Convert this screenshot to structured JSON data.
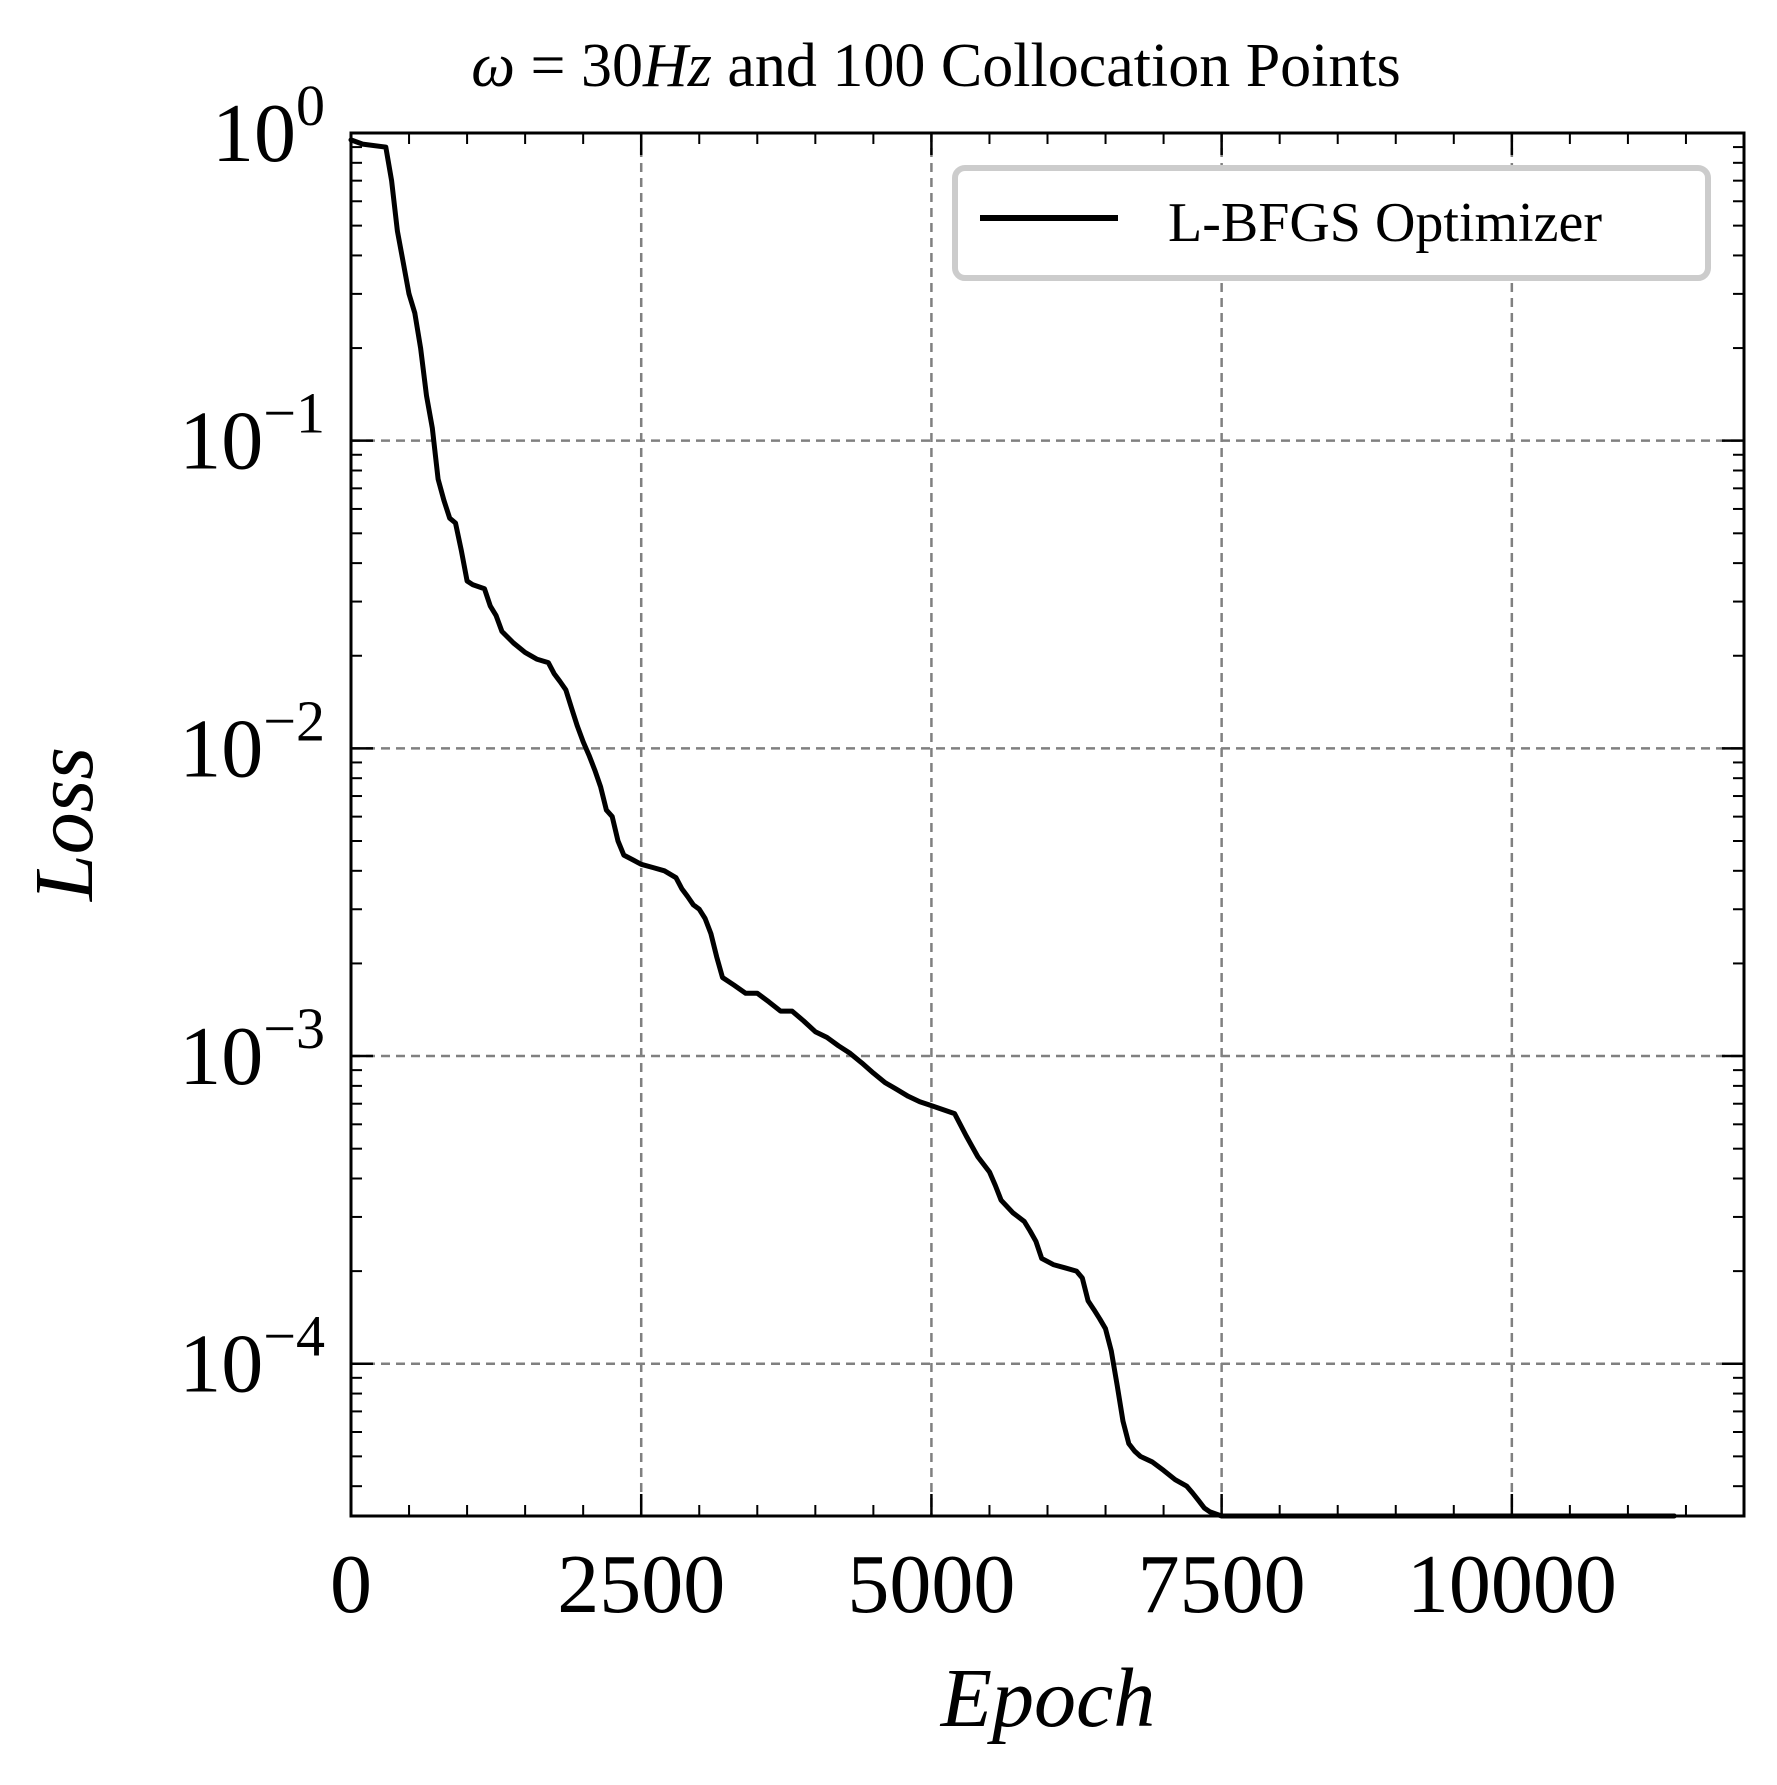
{
  "chart_data": {
    "type": "line",
    "title_prefix": "ω",
    "title_mid": " = 30",
    "title_unit": "Hz",
    "title_rest": " and 100 Collocation Points",
    "xlabel": "Epoch",
    "ylabel": "Loss",
    "xlim": [
      0,
      12000
    ],
    "ylim": [
      3.2e-05,
      1
    ],
    "yscale": "log",
    "xticks": [
      0,
      2500,
      5000,
      7500,
      10000
    ],
    "xtick_labels": [
      "0",
      "2500",
      "5000",
      "7500",
      "10000"
    ],
    "yticks": [
      1,
      0.1,
      0.01,
      0.001,
      0.0001
    ],
    "ytick_labels": [
      {
        "base": "10",
        "exp": "0"
      },
      {
        "base": "10",
        "exp": "−1"
      },
      {
        "base": "10",
        "exp": "−2"
      },
      {
        "base": "10",
        "exp": "−3"
      },
      {
        "base": "10",
        "exp": "−4"
      }
    ],
    "grid": true,
    "legend_position": "top-right",
    "series": [
      {
        "name": "L-BFGS Optimizer",
        "color": "#000000",
        "x": [
          0,
          100,
          300,
          350,
          400,
          450,
          500,
          550,
          600,
          650,
          700,
          750,
          800,
          850,
          900,
          950,
          1000,
          1050,
          1150,
          1200,
          1250,
          1300,
          1400,
          1500,
          1600,
          1700,
          1750,
          1800,
          1850,
          1900,
          1950,
          2000,
          2050,
          2100,
          2150,
          2200,
          2250,
          2300,
          2350,
          2400,
          2500,
          2600,
          2700,
          2800,
          2850,
          2900,
          2950,
          3000,
          3050,
          3100,
          3150,
          3200,
          3300,
          3400,
          3500,
          3600,
          3700,
          3800,
          3900,
          4000,
          4100,
          4200,
          4300,
          4400,
          4500,
          4600,
          4700,
          4800,
          4900,
          5000,
          5100,
          5200,
          5300,
          5400,
          5500,
          5550,
          5600,
          5700,
          5800,
          5850,
          5900,
          5950,
          6050,
          6150,
          6250,
          6300,
          6350,
          6400,
          6450,
          6500,
          6550,
          6600,
          6650,
          6700,
          6750,
          6800,
          6900,
          7000,
          7100,
          7200,
          7250,
          7300,
          7350,
          7400,
          7500,
          7600,
          7700,
          8000,
          9000,
          10000,
          11000,
          11400
        ],
        "y": [
          0.95,
          0.92,
          0.9,
          0.7,
          0.48,
          0.38,
          0.3,
          0.26,
          0.2,
          0.14,
          0.11,
          0.075,
          0.064,
          0.056,
          0.054,
          0.044,
          0.035,
          0.034,
          0.033,
          0.029,
          0.027,
          0.024,
          0.022,
          0.0205,
          0.0195,
          0.019,
          0.0175,
          0.0165,
          0.0155,
          0.0135,
          0.0118,
          0.0105,
          0.0095,
          0.0085,
          0.0075,
          0.0063,
          0.006,
          0.005,
          0.0045,
          0.0044,
          0.0042,
          0.0041,
          0.004,
          0.0038,
          0.0035,
          0.0033,
          0.0031,
          0.003,
          0.0028,
          0.0025,
          0.0021,
          0.0018,
          0.0017,
          0.0016,
          0.0016,
          0.0015,
          0.0014,
          0.0014,
          0.0013,
          0.0012,
          0.00115,
          0.00108,
          0.00102,
          0.00095,
          0.00088,
          0.00082,
          0.00078,
          0.00074,
          0.00071,
          0.00069,
          0.00067,
          0.00065,
          0.00055,
          0.00047,
          0.00042,
          0.00038,
          0.00034,
          0.00031,
          0.00029,
          0.00027,
          0.00025,
          0.00022,
          0.00021,
          0.000205,
          0.0002,
          0.00019,
          0.00016,
          0.00015,
          0.00014,
          0.00013,
          0.00011,
          8.5e-05,
          6.5e-05,
          5.5e-05,
          5.2e-05,
          5e-05,
          4.8e-05,
          4.5e-05,
          4.2e-05,
          4e-05,
          3.8e-05,
          3.6e-05,
          3.4e-05,
          3.3e-05,
          3.2e-05,
          3.2e-05,
          3.2e-05,
          3.2e-05,
          3.2e-05,
          3.2e-05,
          3.2e-05,
          3.2e-05
        ]
      }
    ]
  }
}
